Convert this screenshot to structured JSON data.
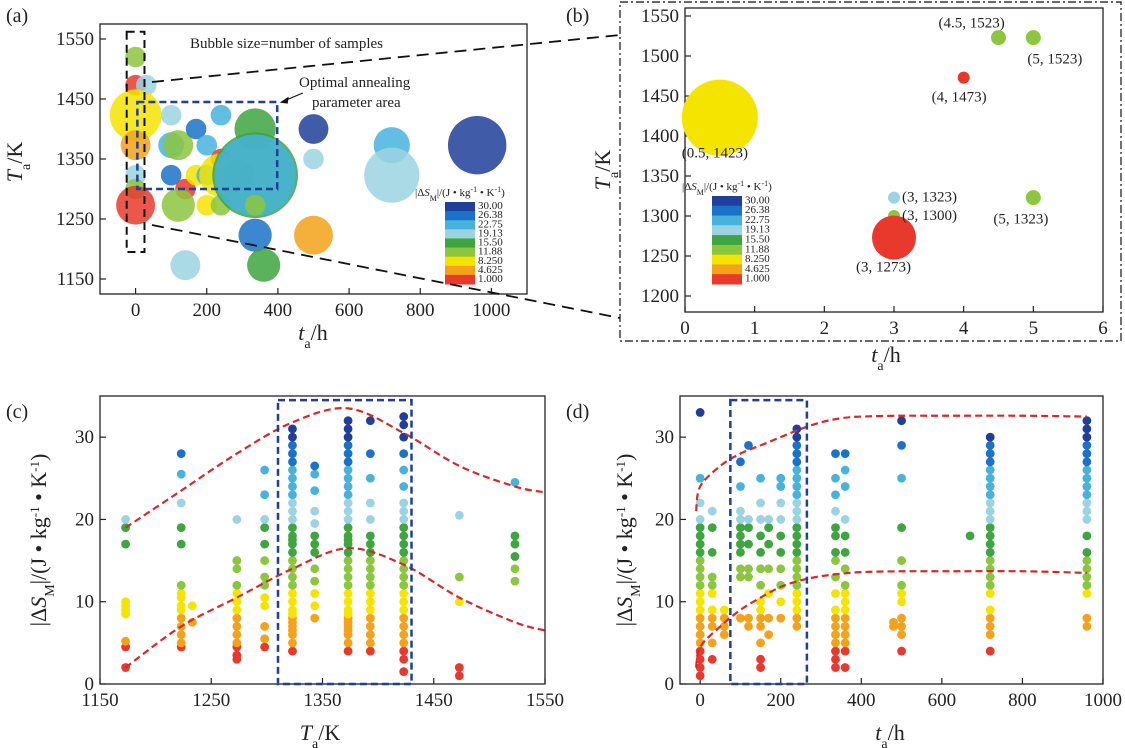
{
  "figure": {
    "panels": [
      "(a)",
      "(b)",
      "(c)",
      "(d)"
    ],
    "colorbar": {
      "title": "|ΔS_M|/(J·kg⁻¹·K⁻¹)",
      "levels": [
        "30.00",
        "26.38",
        "22.75",
        "19.13",
        "15.50",
        "11.88",
        "8.250",
        "4.625",
        "1.000"
      ],
      "colors": [
        "#1f3f9a",
        "#1a73c8",
        "#47b3dd",
        "#9cd3e3",
        "#3ea540",
        "#8cc63e",
        "#f5e400",
        "#f3a21a",
        "#e8392c",
        "#000000"
      ]
    }
  },
  "chart_data": [
    {
      "id": "a",
      "type": "scatter",
      "title": "Bubble size=number of samples",
      "xlabel": "t_a/h",
      "ylabel": "T_a/K",
      "xlim": [
        -100,
        1100
      ],
      "ylim": [
        1125,
        1575
      ],
      "xticks": [
        0,
        200,
        400,
        600,
        800,
        1000
      ],
      "yticks": [
        1150,
        1250,
        1350,
        1450,
        1550
      ],
      "annotations": [
        "Optimal annealing",
        "parameter area"
      ],
      "points": [
        {
          "x": 0,
          "y": 1520,
          "n": 1,
          "color": "#8cc63e"
        },
        {
          "x": 0,
          "y": 1473,
          "n": 1,
          "color": "#e8392c"
        },
        {
          "x": 30,
          "y": 1473,
          "n": 1,
          "color": "#9cd3e3"
        },
        {
          "x": 0,
          "y": 1423,
          "n": 12,
          "color": "#f5e400"
        },
        {
          "x": 0,
          "y": 1373,
          "n": 3,
          "color": "#f3a21a"
        },
        {
          "x": 0,
          "y": 1323,
          "n": 1,
          "color": "#9cd3e3"
        },
        {
          "x": 0,
          "y": 1300,
          "n": 1,
          "color": "#8cc63e"
        },
        {
          "x": 0,
          "y": 1273,
          "n": 6,
          "color": "#e8392c"
        },
        {
          "x": 100,
          "y": 1423,
          "n": 1,
          "color": "#9cd3e3"
        },
        {
          "x": 100,
          "y": 1373,
          "n": 2,
          "color": "#47b3dd"
        },
        {
          "x": 120,
          "y": 1373,
          "n": 3,
          "color": "#8cc63e"
        },
        {
          "x": 100,
          "y": 1323,
          "n": 1,
          "color": "#1a73c8"
        },
        {
          "x": 140,
          "y": 1300,
          "n": 1,
          "color": "#e8392c"
        },
        {
          "x": 120,
          "y": 1273,
          "n": 4,
          "color": "#8cc63e"
        },
        {
          "x": 140,
          "y": 1173,
          "n": 3,
          "color": "#9cd3e3"
        },
        {
          "x": 170,
          "y": 1323,
          "n": 1,
          "color": "#f5e400"
        },
        {
          "x": 170,
          "y": 1400,
          "n": 1,
          "color": "#1a73c8"
        },
        {
          "x": 200,
          "y": 1373,
          "n": 1,
          "color": "#47b3dd"
        },
        {
          "x": 200,
          "y": 1323,
          "n": 1,
          "color": "#47b3dd"
        },
        {
          "x": 200,
          "y": 1273,
          "n": 1,
          "color": "#f5e400"
        },
        {
          "x": 240,
          "y": 1423,
          "n": 1,
          "color": "#47b3dd"
        },
        {
          "x": 240,
          "y": 1350,
          "n": 1,
          "color": "#e8392c"
        },
        {
          "x": 240,
          "y": 1323,
          "n": 8,
          "color": "#f5e400"
        },
        {
          "x": 240,
          "y": 1273,
          "n": 1,
          "color": "#8cc63e"
        },
        {
          "x": 290,
          "y": 1323,
          "n": 3,
          "color": "#8cc63e"
        },
        {
          "x": 336,
          "y": 1400,
          "n": 7,
          "color": "#3ea540"
        },
        {
          "x": 336,
          "y": 1323,
          "n": 38,
          "color": "#3ea540"
        },
        {
          "x": 336,
          "y": 1323,
          "n": 34,
          "color": "#47b3dd"
        },
        {
          "x": 336,
          "y": 1273,
          "n": 1,
          "color": "#8cc63e"
        },
        {
          "x": 336,
          "y": 1223,
          "n": 4,
          "color": "#1a73c8"
        },
        {
          "x": 360,
          "y": 1173,
          "n": 4,
          "color": "#3ea540"
        },
        {
          "x": 500,
          "y": 1400,
          "n": 3,
          "color": "#1f3f9a"
        },
        {
          "x": 500,
          "y": 1350,
          "n": 1,
          "color": "#9cd3e3"
        },
        {
          "x": 500,
          "y": 1223,
          "n": 6,
          "color": "#f3a21a"
        },
        {
          "x": 720,
          "y": 1373,
          "n": 5,
          "color": "#47b3dd"
        },
        {
          "x": 720,
          "y": 1323,
          "n": 14,
          "color": "#9cd3e3"
        },
        {
          "x": 960,
          "y": 1373,
          "n": 16,
          "color": "#1f3f9a"
        }
      ]
    },
    {
      "id": "b",
      "type": "scatter",
      "xlabel": "t_a/h",
      "ylabel": "T_a/K",
      "xlim": [
        0,
        6
      ],
      "ylim": [
        1180,
        1560
      ],
      "xticks": [
        0,
        1,
        2,
        3,
        4,
        5,
        6
      ],
      "yticks": [
        1200,
        1250,
        1300,
        1350,
        1400,
        1450,
        1500,
        1550
      ],
      "points": [
        {
          "x": 0.5,
          "y": 1423,
          "label": "(0.5, 1423)",
          "n": 14,
          "color": "#f5e400"
        },
        {
          "x": 3,
          "y": 1323,
          "label": "(3, 1323)",
          "n": 1,
          "color": "#9cd3e3"
        },
        {
          "x": 3,
          "y": 1300,
          "label": "(3, 1300)",
          "n": 1,
          "color": "#8cc63e"
        },
        {
          "x": 3,
          "y": 1273,
          "label": "(3, 1273)",
          "n": 6,
          "color": "#e8392c"
        },
        {
          "x": 4,
          "y": 1473,
          "label": "(4, 1473)",
          "n": 1,
          "color": "#e8392c"
        },
        {
          "x": 4.5,
          "y": 1523,
          "label": "(4.5, 1523)",
          "n": 2,
          "color": "#8cc63e"
        },
        {
          "x": 5,
          "y": 1523,
          "label": "(5, 1523)",
          "n": 2,
          "color": "#8cc63e"
        },
        {
          "x": 5,
          "y": 1323,
          "label": "(5, 1323)",
          "n": 2,
          "color": "#8cc63e"
        }
      ]
    },
    {
      "id": "c",
      "type": "scatter",
      "xlabel": "T_a/K",
      "ylabel": "|ΔS_M|/(J·kg⁻¹·K⁻¹)",
      "xlim": [
        1150,
        1550
      ],
      "ylim": [
        0,
        35
      ],
      "xticks": [
        1150,
        1250,
        1350,
        1450,
        1550
      ],
      "yticks": [
        0,
        10,
        20,
        30
      ],
      "columns": [
        {
          "x": 1173,
          "values": [
            2,
            4.5,
            5.2,
            8.5,
            9,
            9.5,
            10,
            17,
            19,
            20
          ]
        },
        {
          "x": 1223,
          "values": [
            4.5,
            5,
            6,
            7,
            8,
            9,
            9.5,
            10.5,
            11,
            12,
            17,
            19,
            22,
            25.5,
            28
          ]
        },
        {
          "x": 1233,
          "values": [
            7.5,
            9.5
          ]
        },
        {
          "x": 1273,
          "values": [
            3,
            3.5,
            4.5,
            5,
            6,
            7,
            8,
            9,
            10,
            11,
            12,
            14,
            15,
            20
          ]
        },
        {
          "x": 1298,
          "values": [
            4.5,
            5.5,
            7,
            9.5,
            10.5,
            12,
            13,
            15,
            17,
            19,
            20,
            23,
            26
          ]
        },
        {
          "x": 1323,
          "values": [
            4,
            5,
            6,
            6.5,
            7,
            7.5,
            8,
            8.5,
            9,
            10,
            11,
            12,
            13,
            14,
            15,
            16,
            17,
            17.5,
            18,
            19,
            20,
            21,
            22,
            23,
            24,
            25,
            26,
            27,
            28,
            29,
            30,
            31
          ]
        },
        {
          "x": 1343,
          "values": [
            8,
            9.5,
            11,
            12.5,
            14,
            16,
            17,
            18,
            19.5,
            21,
            23.5,
            25.5,
            26.5
          ]
        },
        {
          "x": 1373,
          "values": [
            4,
            5,
            6,
            6.5,
            7,
            7.5,
            8,
            8.5,
            9,
            10,
            11,
            12,
            13,
            14,
            15,
            16,
            17,
            17.5,
            18,
            19,
            20,
            21,
            22,
            23,
            24,
            25,
            26,
            27,
            28,
            29,
            30,
            31,
            32
          ]
        },
        {
          "x": 1393,
          "values": [
            4,
            5,
            6,
            7,
            8,
            9,
            10,
            11,
            12,
            13,
            14,
            15,
            16,
            17,
            18,
            20,
            22,
            25,
            28,
            32
          ]
        },
        {
          "x": 1423,
          "values": [
            1.5,
            3,
            4,
            5,
            6,
            7,
            8,
            9,
            10,
            11,
            12,
            13,
            14,
            15,
            16,
            17,
            18,
            19,
            20,
            21,
            22,
            24,
            26,
            28,
            30,
            31.5,
            32.5
          ]
        },
        {
          "x": 1473,
          "values": [
            1,
            2,
            10,
            13,
            20.5
          ]
        },
        {
          "x": 1523,
          "values": [
            12.5,
            14,
            15.5,
            17,
            18,
            24.5
          ]
        }
      ],
      "curves": [
        {
          "name": "upper envelope",
          "style": "dashed",
          "color": "#d42a2a",
          "x": [
            1173,
            1223,
            1273,
            1323,
            1373,
            1423,
            1473,
            1523,
            1550
          ],
          "y": [
            19,
            23.5,
            28,
            31.8,
            33.5,
            30.5,
            26.5,
            24,
            23.3
          ]
        },
        {
          "name": "lower envelope",
          "style": "dashed",
          "color": "#d42a2a",
          "x": [
            1173,
            1223,
            1273,
            1323,
            1373,
            1423,
            1473,
            1523,
            1550
          ],
          "y": [
            2,
            7,
            10.5,
            14,
            16.5,
            14.5,
            10.5,
            7.5,
            6.5
          ]
        }
      ],
      "highlight_box": {
        "x_range": [
          1310,
          1430
        ],
        "y_range": [
          0,
          34.5
        ]
      }
    },
    {
      "id": "d",
      "type": "scatter",
      "xlabel": "t_a/h",
      "ylabel": "|ΔS_M|/(J·kg⁻¹·K⁻¹)",
      "xlim": [
        -50,
        1000
      ],
      "ylim": [
        0,
        35
      ],
      "xticks": [
        0,
        200,
        400,
        600,
        800,
        1000
      ],
      "yticks": [
        0,
        10,
        20,
        30
      ],
      "columns": [
        {
          "x": 0,
          "values": [
            1,
            2,
            3,
            4,
            5,
            6,
            7,
            8,
            9,
            10,
            11,
            12,
            13,
            14,
            15,
            16,
            17,
            18,
            19,
            20,
            22,
            25,
            33
          ]
        },
        {
          "x": 30,
          "values": [
            3,
            5,
            7,
            8,
            9,
            11,
            12,
            13,
            16,
            19,
            21
          ]
        },
        {
          "x": 60,
          "values": [
            6,
            7,
            8,
            9
          ]
        },
        {
          "x": 100,
          "values": [
            8,
            13,
            14,
            16,
            17,
            18,
            19,
            20,
            21,
            24,
            27
          ]
        },
        {
          "x": 120,
          "values": [
            7,
            8,
            13,
            14,
            17,
            19,
            20,
            29
          ]
        },
        {
          "x": 150,
          "values": [
            2,
            3,
            5,
            7,
            8,
            9,
            10,
            12,
            14,
            16,
            18,
            20,
            22,
            25
          ]
        },
        {
          "x": 170,
          "values": [
            6,
            8,
            11,
            14,
            17,
            19,
            20
          ]
        },
        {
          "x": 200,
          "values": [
            8,
            10,
            12,
            14,
            16,
            18,
            20,
            22,
            24,
            25
          ]
        },
        {
          "x": 240,
          "values": [
            7,
            8,
            9,
            10,
            11,
            12,
            13,
            14,
            15,
            16,
            17,
            18,
            19,
            20,
            21,
            22,
            23,
            24,
            25,
            26,
            27,
            28,
            29,
            30,
            31
          ]
        },
        {
          "x": 336,
          "values": [
            2,
            3,
            4,
            5,
            6,
            7,
            8,
            9,
            11,
            13,
            15,
            16,
            18,
            19,
            21,
            23,
            25,
            28
          ]
        },
        {
          "x": 360,
          "values": [
            2,
            4,
            5,
            6,
            7,
            8,
            9,
            10,
            11,
            12,
            14,
            16,
            18,
            20,
            24,
            26,
            28
          ]
        },
        {
          "x": 480,
          "values": [
            7,
            7.5
          ]
        },
        {
          "x": 500,
          "values": [
            4,
            6,
            7,
            8,
            10,
            11,
            12,
            15,
            19,
            25,
            29,
            32
          ]
        },
        {
          "x": 670,
          "values": [
            18
          ]
        },
        {
          "x": 720,
          "values": [
            4,
            6,
            7,
            8,
            9,
            11,
            12,
            13,
            14,
            15,
            16,
            17,
            18,
            19,
            20,
            21,
            22,
            23,
            24,
            25,
            26,
            27,
            28,
            29,
            30
          ]
        },
        {
          "x": 960,
          "values": [
            7,
            8,
            11,
            12,
            13,
            14,
            15,
            16,
            18,
            20,
            21,
            22,
            23,
            24,
            25,
            26,
            27,
            28,
            29,
            30,
            31,
            32
          ]
        }
      ],
      "curves": [
        {
          "name": "upper envelope",
          "style": "dashed",
          "color": "#d42a2a",
          "x": [
            -10,
            0,
            50,
            100,
            150,
            200,
            250,
            300,
            350,
            400,
            500,
            600,
            800,
            960
          ],
          "y": [
            21,
            24,
            26.5,
            28,
            29,
            30,
            31,
            31.8,
            32.3,
            32.5,
            32.6,
            32.6,
            32.6,
            32.5
          ]
        },
        {
          "name": "lower envelope",
          "style": "dashed",
          "color": "#d42a2a",
          "x": [
            -10,
            0,
            50,
            100,
            150,
            200,
            250,
            300,
            350,
            400,
            500,
            600,
            800,
            960
          ],
          "y": [
            2,
            4.5,
            7,
            9,
            10.5,
            11.8,
            12.6,
            13.1,
            13.4,
            13.6,
            13.7,
            13.7,
            13.7,
            13.5
          ]
        }
      ],
      "highlight_box": {
        "x_range": [
          75,
          265
        ],
        "y_range": [
          0,
          34.5
        ]
      }
    }
  ]
}
